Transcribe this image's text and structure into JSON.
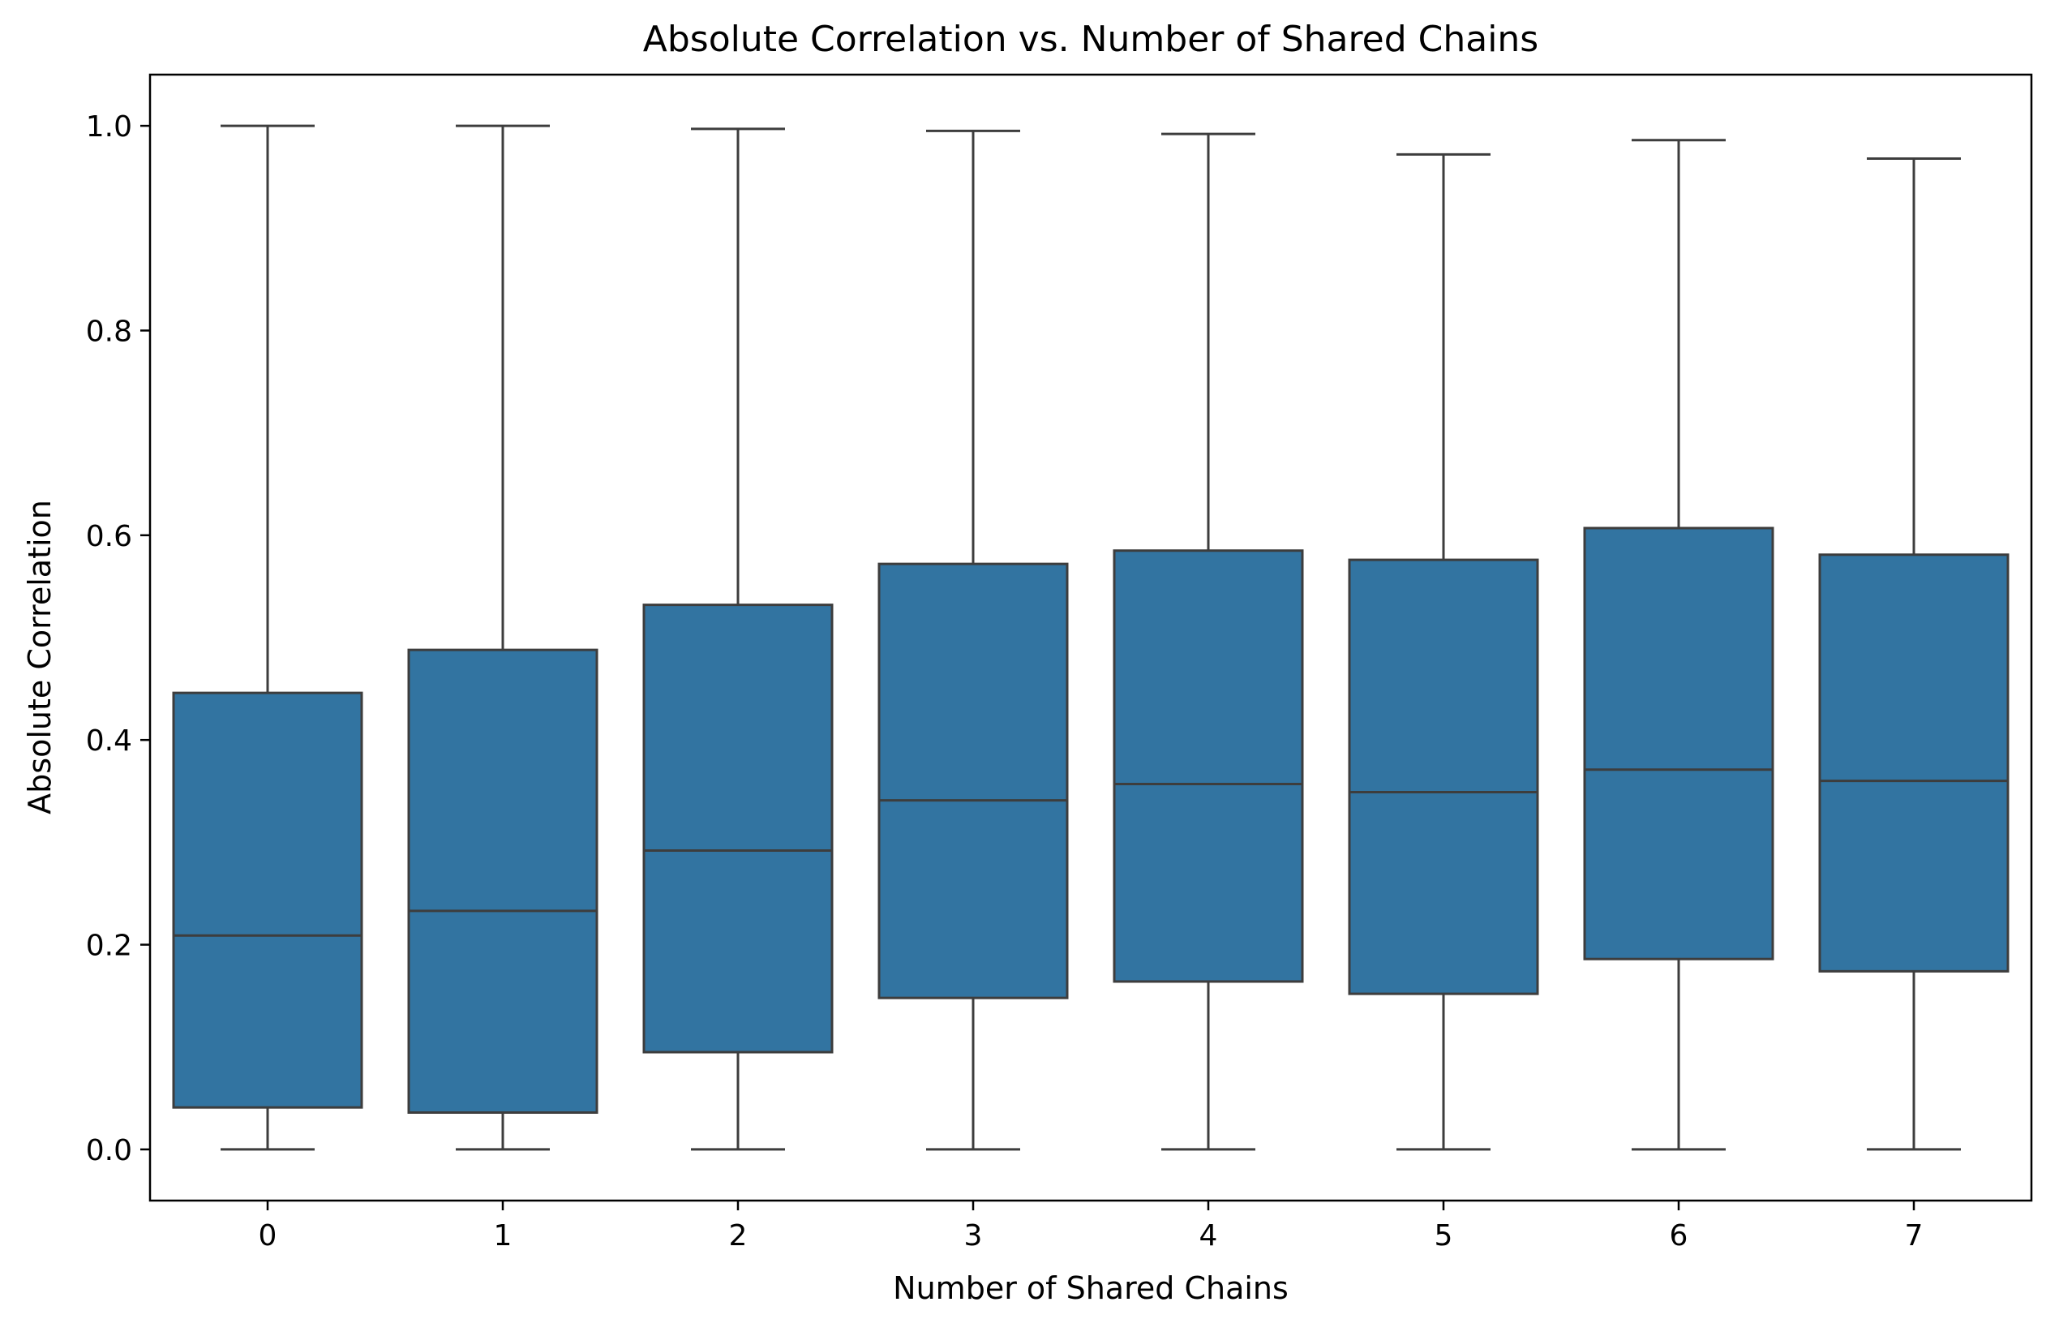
{
  "chart_data": {
    "type": "box",
    "title": "Absolute Correlation vs. Number of Shared Chains",
    "xlabel": "Number of Shared Chains",
    "ylabel": "Absolute Correlation",
    "categories": [
      "0",
      "1",
      "2",
      "3",
      "4",
      "5",
      "6",
      "7"
    ],
    "boxes": [
      {
        "category": "0",
        "whisker_low": 0.0,
        "q1": 0.041,
        "median": 0.209,
        "q3": 0.446,
        "whisker_high": 1.0
      },
      {
        "category": "1",
        "whisker_low": 0.0,
        "q1": 0.036,
        "median": 0.233,
        "q3": 0.488,
        "whisker_high": 1.0
      },
      {
        "category": "2",
        "whisker_low": 0.0,
        "q1": 0.095,
        "median": 0.292,
        "q3": 0.532,
        "whisker_high": 0.997
      },
      {
        "category": "3",
        "whisker_low": 0.0,
        "q1": 0.148,
        "median": 0.341,
        "q3": 0.572,
        "whisker_high": 0.995
      },
      {
        "category": "4",
        "whisker_low": 0.0,
        "q1": 0.164,
        "median": 0.357,
        "q3": 0.585,
        "whisker_high": 0.992
      },
      {
        "category": "5",
        "whisker_low": 0.0,
        "q1": 0.152,
        "median": 0.349,
        "q3": 0.576,
        "whisker_high": 0.972
      },
      {
        "category": "6",
        "whisker_low": 0.0,
        "q1": 0.186,
        "median": 0.371,
        "q3": 0.607,
        "whisker_high": 0.986
      },
      {
        "category": "7",
        "whisker_low": 0.0,
        "q1": 0.174,
        "median": 0.36,
        "q3": 0.581,
        "whisker_high": 0.968
      }
    ],
    "ylim": [
      -0.05,
      1.05
    ],
    "yticks": [
      0.0,
      0.2,
      0.4,
      0.6,
      0.8,
      1.0
    ],
    "ytick_labels": [
      "0.0",
      "0.2",
      "0.4",
      "0.6",
      "0.8",
      "1.0"
    ],
    "grid": false,
    "legend": "none",
    "box_color": "#3274a1",
    "line_color": "#3d3d3d"
  }
}
